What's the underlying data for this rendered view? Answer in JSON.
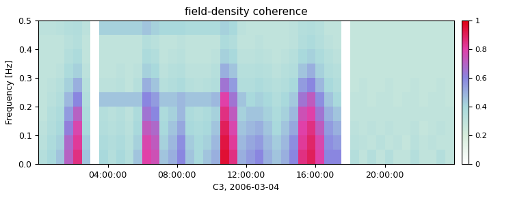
{
  "chart_data": {
    "type": "heatmap",
    "title": "field-density coherence",
    "x_label": "C3, 2006-03-04",
    "y_label": "Frequency [Hz]",
    "xlim": [
      0,
      24
    ],
    "ylim": [
      0.0,
      0.5
    ],
    "xticks": [
      {
        "value": 4,
        "label": "04:00:00"
      },
      {
        "value": 8,
        "label": "08:00:00"
      },
      {
        "value": 12,
        "label": "12:00:00"
      },
      {
        "value": 16,
        "label": "16:00:00"
      },
      {
        "value": 20,
        "label": "20:00:00"
      }
    ],
    "yticks": [
      0.0,
      0.1,
      0.2,
      0.3,
      0.4,
      0.5
    ],
    "x_edges": [
      0,
      0.5,
      1,
      1.5,
      2,
      2.5,
      3,
      3.5,
      4,
      4.5,
      5,
      5.5,
      6,
      6.5,
      7,
      7.5,
      8,
      8.5,
      9,
      9.5,
      10,
      10.5,
      11,
      11.5,
      12,
      12.5,
      13,
      13.5,
      14,
      14.5,
      15,
      15.5,
      16,
      16.5,
      17,
      17.5,
      18,
      18.5,
      19,
      19.5,
      20,
      20.5,
      21,
      21.5,
      22,
      22.5,
      23,
      23.5,
      24
    ],
    "y_edges": [
      0.0,
      0.05,
      0.1,
      0.15,
      0.2,
      0.25,
      0.3,
      0.35,
      0.4,
      0.45,
      0.5
    ],
    "cells": [
      [
        0.35,
        0.4,
        0.45,
        0.7,
        0.85,
        0.45,
        null,
        0.4,
        0.35,
        0.4,
        0.35,
        0.45,
        0.8,
        0.75,
        0.45,
        0.5,
        0.6,
        0.45,
        0.4,
        0.45,
        0.5,
        0.95,
        0.85,
        0.5,
        0.55,
        0.6,
        0.5,
        0.45,
        0.5,
        0.6,
        0.85,
        0.9,
        0.8,
        0.6,
        0.6,
        null,
        0.35,
        0.3,
        0.35,
        0.3,
        0.35,
        0.3,
        0.3,
        0.35,
        0.3,
        0.3,
        0.35,
        0.3
      ],
      [
        0.33,
        0.38,
        0.42,
        0.68,
        0.82,
        0.43,
        null,
        0.38,
        0.36,
        0.38,
        0.34,
        0.42,
        0.78,
        0.72,
        0.42,
        0.48,
        0.58,
        0.43,
        0.4,
        0.42,
        0.48,
        0.93,
        0.82,
        0.48,
        0.52,
        0.55,
        0.48,
        0.43,
        0.48,
        0.58,
        0.82,
        0.88,
        0.78,
        0.58,
        0.55,
        null,
        0.33,
        0.32,
        0.3,
        0.33,
        0.3,
        0.32,
        0.28,
        0.33,
        0.3,
        0.32,
        0.3,
        0.3
      ],
      [
        0.32,
        0.36,
        0.4,
        0.62,
        0.78,
        0.4,
        null,
        0.36,
        0.34,
        0.36,
        0.33,
        0.4,
        0.72,
        0.68,
        0.4,
        0.45,
        0.52,
        0.4,
        0.38,
        0.4,
        0.45,
        0.9,
        0.78,
        0.45,
        0.48,
        0.5,
        0.45,
        0.4,
        0.45,
        0.52,
        0.8,
        0.85,
        0.72,
        0.55,
        0.5,
        null,
        0.32,
        0.3,
        0.32,
        0.3,
        0.32,
        0.3,
        0.3,
        0.32,
        0.28,
        0.3,
        0.32,
        0.3
      ],
      [
        0.3,
        0.35,
        0.38,
        0.55,
        0.7,
        0.38,
        null,
        0.35,
        0.33,
        0.35,
        0.32,
        0.38,
        0.65,
        0.6,
        0.38,
        0.42,
        0.48,
        0.38,
        0.36,
        0.38,
        0.42,
        0.85,
        0.72,
        0.42,
        0.45,
        0.45,
        0.42,
        0.38,
        0.42,
        0.48,
        0.75,
        0.8,
        0.65,
        0.5,
        0.45,
        null,
        0.3,
        0.3,
        0.3,
        0.3,
        0.3,
        0.3,
        0.3,
        0.3,
        0.3,
        0.3,
        0.3,
        0.3
      ],
      [
        0.3,
        0.33,
        0.36,
        0.48,
        0.6,
        0.36,
        null,
        0.45,
        0.45,
        0.45,
        0.45,
        0.45,
        0.6,
        0.55,
        0.45,
        0.45,
        0.48,
        0.45,
        0.45,
        0.45,
        0.48,
        0.8,
        0.65,
        0.45,
        0.4,
        0.42,
        0.4,
        0.36,
        0.4,
        0.44,
        0.65,
        0.72,
        0.58,
        0.45,
        0.4,
        null,
        0.3,
        0.3,
        0.28,
        0.3,
        0.3,
        0.28,
        0.3,
        0.3,
        0.28,
        0.3,
        0.3,
        0.28
      ],
      [
        0.3,
        0.32,
        0.34,
        0.42,
        0.5,
        0.34,
        null,
        0.32,
        0.32,
        0.33,
        0.3,
        0.34,
        0.5,
        0.45,
        0.34,
        0.36,
        0.38,
        0.34,
        0.33,
        0.34,
        0.36,
        0.65,
        0.55,
        0.36,
        0.36,
        0.38,
        0.36,
        0.34,
        0.36,
        0.4,
        0.55,
        0.6,
        0.48,
        0.4,
        0.36,
        null,
        0.28,
        0.3,
        0.28,
        0.28,
        0.3,
        0.28,
        0.28,
        0.3,
        0.28,
        0.28,
        0.3,
        0.28
      ],
      [
        0.3,
        0.3,
        0.32,
        0.38,
        0.42,
        0.32,
        null,
        0.3,
        0.3,
        0.32,
        0.3,
        0.32,
        0.42,
        0.4,
        0.32,
        0.34,
        0.35,
        0.32,
        0.32,
        0.32,
        0.34,
        0.5,
        0.45,
        0.34,
        0.34,
        0.35,
        0.34,
        0.32,
        0.34,
        0.36,
        0.45,
        0.5,
        0.42,
        0.36,
        0.34,
        null,
        0.28,
        0.28,
        0.28,
        0.28,
        0.28,
        0.28,
        0.28,
        0.28,
        0.28,
        0.28,
        0.28,
        0.28
      ],
      [
        0.3,
        0.3,
        0.3,
        0.35,
        0.38,
        0.3,
        null,
        0.3,
        0.3,
        0.3,
        0.3,
        0.3,
        0.38,
        0.36,
        0.3,
        0.32,
        0.33,
        0.3,
        0.3,
        0.3,
        0.32,
        0.42,
        0.4,
        0.32,
        0.32,
        0.33,
        0.32,
        0.3,
        0.32,
        0.34,
        0.4,
        0.42,
        0.38,
        0.34,
        0.32,
        null,
        0.28,
        0.28,
        0.28,
        0.28,
        0.28,
        0.28,
        0.28,
        0.28,
        0.28,
        0.28,
        0.28,
        0.28
      ],
      [
        0.3,
        0.3,
        0.3,
        0.33,
        0.35,
        0.3,
        null,
        0.3,
        0.3,
        0.3,
        0.3,
        0.3,
        0.35,
        0.33,
        0.3,
        0.3,
        0.32,
        0.3,
        0.3,
        0.3,
        0.3,
        0.38,
        0.36,
        0.3,
        0.3,
        0.32,
        0.3,
        0.3,
        0.3,
        0.32,
        0.36,
        0.38,
        0.35,
        0.32,
        0.3,
        null,
        0.28,
        0.28,
        0.28,
        0.28,
        0.28,
        0.28,
        0.28,
        0.28,
        0.28,
        0.28,
        0.28,
        0.28
      ],
      [
        0.32,
        0.32,
        0.33,
        0.35,
        0.36,
        0.32,
        null,
        0.42,
        0.42,
        0.42,
        0.42,
        0.42,
        0.45,
        0.42,
        0.4,
        0.4,
        0.4,
        0.38,
        0.38,
        0.38,
        0.38,
        0.42,
        0.4,
        0.32,
        0.3,
        0.3,
        0.3,
        0.3,
        0.3,
        0.32,
        0.35,
        0.36,
        0.34,
        0.3,
        0.3,
        null,
        0.28,
        0.28,
        0.28,
        0.28,
        0.28,
        0.28,
        0.28,
        0.28,
        0.28,
        0.28,
        0.28,
        0.28
      ]
    ],
    "colorbar": {
      "range": [
        0,
        1
      ],
      "ticks": [
        0,
        0.2,
        0.4,
        0.6,
        0.8,
        1
      ]
    }
  }
}
